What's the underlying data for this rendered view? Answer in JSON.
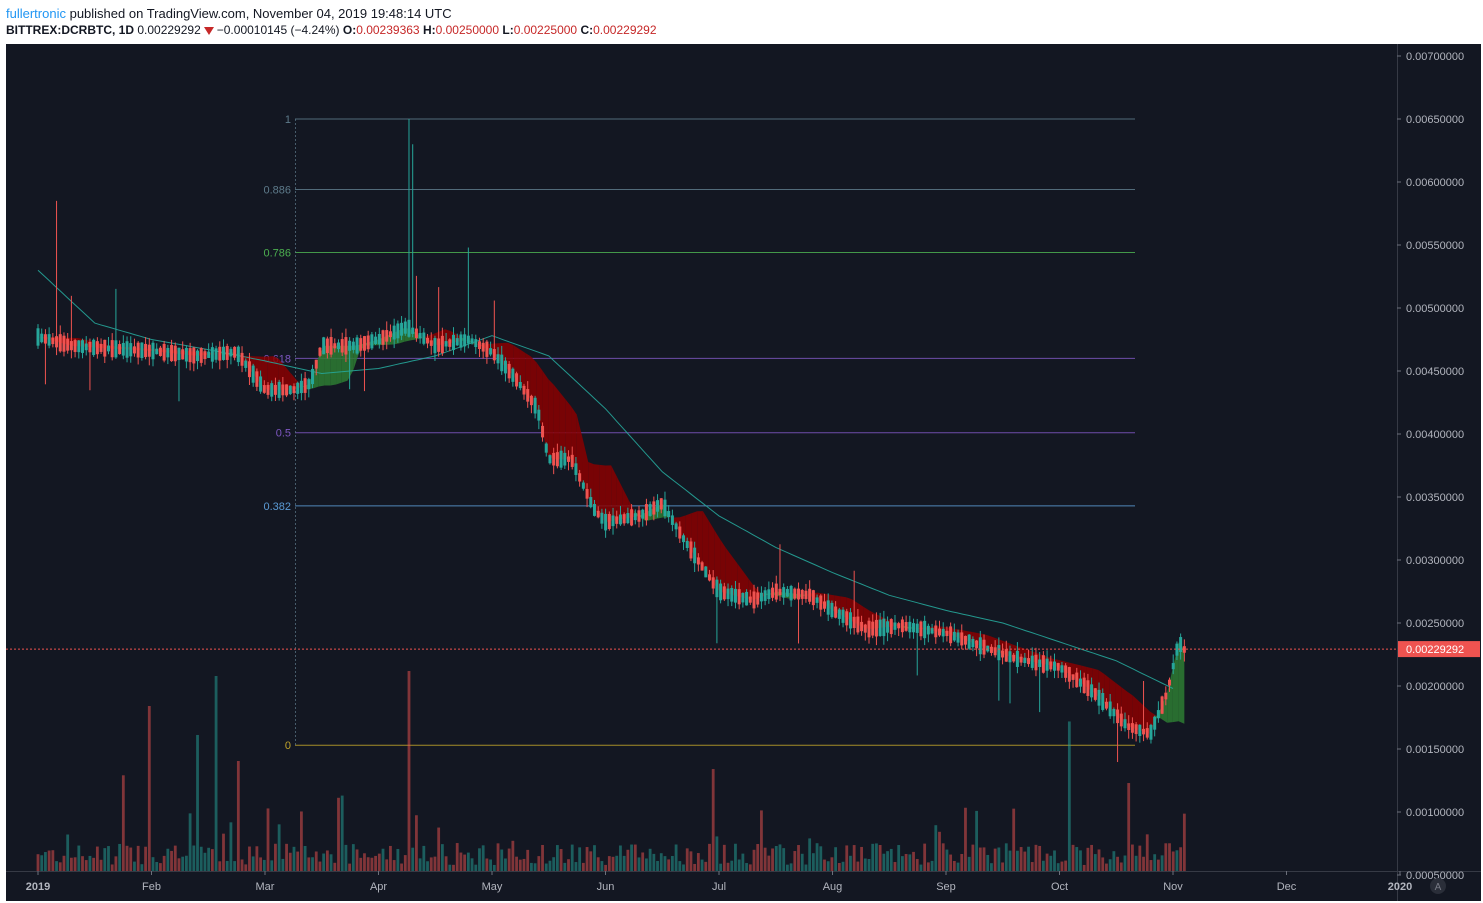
{
  "header": {
    "author": "fullertronic",
    "published_text": "published on TradingView.com, November 04, 2019 19:48:14 UTC",
    "symbol": "BITTREX:DCRBTC, 1D",
    "last": "0.00229292",
    "change": "−0.00010145 (−4.24%)",
    "o_label": "O:",
    "o_value": "0.00239363",
    "h_label": "H:",
    "h_value": "0.00250000",
    "l_label": "L:",
    "l_value": "0.00225000",
    "c_label": "C:",
    "c_value": "0.00229292"
  },
  "chart_data": {
    "type": "candlestick",
    "ylim": [
      0.0005,
      0.0072
    ],
    "y_ticks": [
      "0.00700000",
      "0.00650000",
      "0.00600000",
      "0.00550000",
      "0.00500000",
      "0.00450000",
      "0.00400000",
      "0.00350000",
      "0.00300000",
      "0.00250000",
      "0.00200000",
      "0.00150000",
      "0.00100000",
      "0.00050000"
    ],
    "x_ticks": [
      "2019",
      "Feb",
      "Mar",
      "Apr",
      "May",
      "Jun",
      "Jul",
      "Aug",
      "Sep",
      "Oct",
      "Nov",
      "Dec",
      "2020"
    ],
    "last_price_label": "0.00229292",
    "last_price": 0.00229292,
    "fib_levels": [
      {
        "label": "1",
        "ratio": 1,
        "price": 0.0065,
        "color": "#5d7a8a"
      },
      {
        "label": "0.886",
        "ratio": 0.886,
        "price": 0.00594,
        "color": "#5d7a8a"
      },
      {
        "label": "0.786",
        "ratio": 0.786,
        "price": 0.00544,
        "color": "#4caf50"
      },
      {
        "label": "0.618",
        "ratio": 0.618,
        "price": 0.0046,
        "color": "#7e57c2"
      },
      {
        "label": "0.5",
        "ratio": 0.5,
        "price": 0.00401,
        "color": "#7e57c2"
      },
      {
        "label": "0.382",
        "ratio": 0.382,
        "price": 0.00343,
        "color": "#5b9bd5"
      },
      {
        "label": "0",
        "ratio": 0,
        "price": 0.00153,
        "color": "#bfa22a"
      }
    ],
    "price_path": [
      {
        "m": 0.0,
        "p": 0.00477
      },
      {
        "m": 0.3,
        "p": 0.0047
      },
      {
        "m": 0.6,
        "p": 0.00468
      },
      {
        "m": 1.0,
        "p": 0.00466
      },
      {
        "m": 1.4,
        "p": 0.00462
      },
      {
        "m": 1.75,
        "p": 0.00465
      },
      {
        "m": 2.0,
        "p": 0.00435
      },
      {
        "m": 2.25,
        "p": 0.00435
      },
      {
        "m": 2.4,
        "p": 0.0044
      },
      {
        "m": 2.5,
        "p": 0.0047
      },
      {
        "m": 2.8,
        "p": 0.0047
      },
      {
        "m": 3.0,
        "p": 0.00475
      },
      {
        "m": 3.25,
        "p": 0.00485
      },
      {
        "m": 3.5,
        "p": 0.0047
      },
      {
        "m": 3.8,
        "p": 0.00475
      },
      {
        "m": 4.0,
        "p": 0.00465
      },
      {
        "m": 4.2,
        "p": 0.00445
      },
      {
        "m": 4.4,
        "p": 0.0042
      },
      {
        "m": 4.5,
        "p": 0.0038
      },
      {
        "m": 4.7,
        "p": 0.0038
      },
      {
        "m": 4.9,
        "p": 0.0034
      },
      {
        "m": 5.0,
        "p": 0.0033
      },
      {
        "m": 5.3,
        "p": 0.00335
      },
      {
        "m": 5.5,
        "p": 0.00345
      },
      {
        "m": 5.7,
        "p": 0.00315
      },
      {
        "m": 6.0,
        "p": 0.00275
      },
      {
        "m": 6.3,
        "p": 0.00268
      },
      {
        "m": 6.5,
        "p": 0.00275
      },
      {
        "m": 6.8,
        "p": 0.00272
      },
      {
        "m": 7.0,
        "p": 0.0026
      },
      {
        "m": 7.3,
        "p": 0.00245
      },
      {
        "m": 7.6,
        "p": 0.00248
      },
      {
        "m": 8.0,
        "p": 0.00242
      },
      {
        "m": 8.3,
        "p": 0.00232
      },
      {
        "m": 8.6,
        "p": 0.00222
      },
      {
        "m": 9.0,
        "p": 0.00215
      },
      {
        "m": 9.3,
        "p": 0.00195
      },
      {
        "m": 9.6,
        "p": 0.00168
      },
      {
        "m": 9.8,
        "p": 0.00162
      },
      {
        "m": 9.95,
        "p": 0.00195
      },
      {
        "m": 10.05,
        "p": 0.00235
      },
      {
        "m": 10.1,
        "p": 0.00229
      }
    ],
    "ma_path": [
      {
        "m": 0.0,
        "p": 0.0053
      },
      {
        "m": 0.5,
        "p": 0.00488
      },
      {
        "m": 1.0,
        "p": 0.00475
      },
      {
        "m": 1.5,
        "p": 0.00467
      },
      {
        "m": 2.0,
        "p": 0.00458
      },
      {
        "m": 2.5,
        "p": 0.00448
      },
      {
        "m": 3.0,
        "p": 0.00452
      },
      {
        "m": 3.5,
        "p": 0.00462
      },
      {
        "m": 4.0,
        "p": 0.00478
      },
      {
        "m": 4.5,
        "p": 0.00462
      },
      {
        "m": 5.0,
        "p": 0.0042
      },
      {
        "m": 5.5,
        "p": 0.0037
      },
      {
        "m": 6.0,
        "p": 0.00335
      },
      {
        "m": 6.5,
        "p": 0.0031
      },
      {
        "m": 7.0,
        "p": 0.0029
      },
      {
        "m": 7.5,
        "p": 0.00272
      },
      {
        "m": 8.0,
        "p": 0.0026
      },
      {
        "m": 8.5,
        "p": 0.0025
      },
      {
        "m": 9.0,
        "p": 0.00235
      },
      {
        "m": 9.5,
        "p": 0.0022
      },
      {
        "m": 10.0,
        "p": 0.00198
      }
    ]
  },
  "colors": {
    "background": "#131722",
    "up": "#26a69a",
    "down": "#ef5350",
    "ribbon_up": "#2e7d32",
    "ribbon_down": "#8b0000",
    "ma": "#26a69a",
    "price_line": "#ef5350",
    "axis_text": "#b2b5be"
  },
  "footer": {
    "auto_label": "A"
  }
}
